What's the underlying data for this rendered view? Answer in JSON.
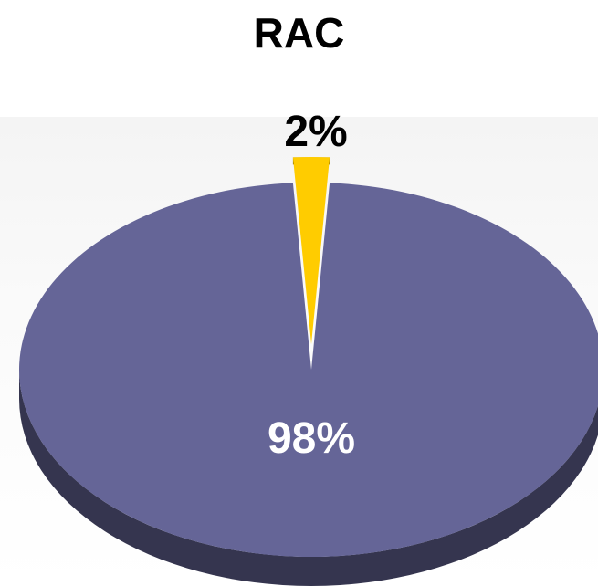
{
  "chart_data": {
    "type": "pie",
    "title": "RAC",
    "slices": [
      {
        "label": "98%",
        "value": 98,
        "color": "#656597",
        "side_color": "#35354f",
        "label_color": "#ffffff"
      },
      {
        "label": "2%",
        "value": 2,
        "color": "#ffcc00",
        "side_color": "#8a6d00",
        "label_color": "#000000"
      }
    ],
    "three_d": true,
    "legend": "none"
  }
}
